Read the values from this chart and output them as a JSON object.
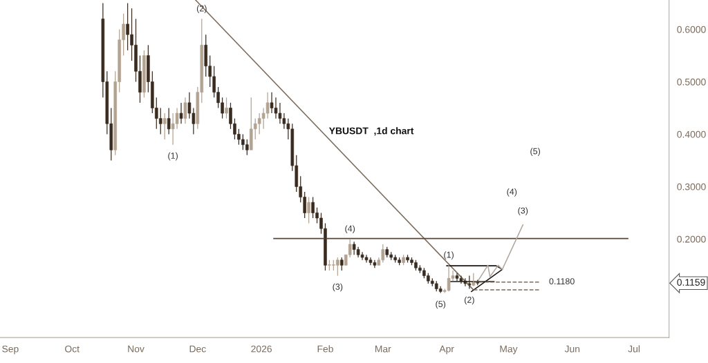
{
  "chart_data": {
    "type": "candlestick",
    "title": "YBUSDT  ,1d chart",
    "colors": [
      "#3a2c20",
      "#3a2c20",
      "#3a2c20",
      "#b3a392",
      "#b3a392",
      "#b3a392",
      "#3a2c20",
      "#3a2c20",
      "#3a2c20",
      "#3a2c20",
      "#b3a392",
      "#3a2c20",
      "#3a2c20",
      "#3a2c20",
      "#3a2c20",
      "#b3a392",
      "#3a2c20",
      "#b3a392",
      "#b3a392",
      "#3a2c20",
      "#b3a392",
      "#3a2c20",
      "#3a2c20",
      "#b3a392",
      "#b3a392",
      "#3a2c20",
      "#3a2c20",
      "#3a2c20",
      "#3a2c20",
      "#3a2c20",
      "#b3a392",
      "#3a2c20",
      "#3a2c20",
      "#3a2c20",
      "#3a2c20",
      "#3a2c20",
      "#b3a392",
      "#b3a392",
      "#b3a392",
      "#b3a392",
      "#b3a392",
      "#3a2c20",
      "#3a2c20",
      "#3a2c20",
      "#3a2c20",
      "#3a2c20",
      "#3a2c20",
      "#3a2c20",
      "#3a2c20",
      "#3a2c20",
      "#b3a392",
      "#3a2c20",
      "#3a2c20",
      "#3a2c20",
      "#3a2c20",
      "#b3a392",
      "#b3a392",
      "#b3a392",
      "#3a2c20",
      "#b3a392",
      "#b3a392",
      "#3a2c20",
      "#3a2c20",
      "#3a2c20",
      "#3a2c20",
      "#3a2c20",
      "#3a2c20",
      "#b3a392",
      "#b3a392",
      "#3a2c20",
      "#3a2c20",
      "#3a2c20",
      "#3a2c20",
      "#b3a392",
      "#3a2c20",
      "#3a2c20",
      "#3a2c20",
      "#3a2c20",
      "#3a2c20",
      "#3a2c20",
      "#3a2c20",
      "#3a2c20",
      "#3a2c20",
      "#b3a392",
      "#b3a392",
      "#b3a392",
      "#3a2c20",
      "#3a2c20",
      "#3a2c20",
      "#3a2c20",
      "#b3a392",
      "#3a2c20"
    ],
    "x": [
      "2025-10-16",
      "2025-10-18",
      "2025-10-20",
      "2025-10-22",
      "2025-10-24",
      "2025-10-26",
      "2025-10-28",
      "2025-10-30",
      "2025-11-01",
      "2025-11-03",
      "2025-11-05",
      "2025-11-07",
      "2025-11-09",
      "2025-11-11",
      "2025-11-13",
      "2025-11-15",
      "2025-11-17",
      "2025-11-19",
      "2025-11-21",
      "2025-11-23",
      "2025-11-25",
      "2025-11-27",
      "2025-11-29",
      "2025-12-01",
      "2025-12-03",
      "2025-12-05",
      "2025-12-07",
      "2025-12-09",
      "2025-12-11",
      "2025-12-13",
      "2025-12-15",
      "2025-12-17",
      "2025-12-19",
      "2025-12-21",
      "2025-12-23",
      "2025-12-25",
      "2025-12-27",
      "2025-12-29",
      "2025-12-31",
      "2026-01-02",
      "2026-01-04",
      "2026-01-06",
      "2026-01-08",
      "2026-01-10",
      "2026-01-12",
      "2026-01-14",
      "2026-01-16",
      "2026-01-18",
      "2026-01-20",
      "2026-01-22",
      "2026-01-24",
      "2026-01-26",
      "2026-01-28",
      "2026-01-30",
      "2026-02-01",
      "2026-02-03",
      "2026-02-05",
      "2026-02-07",
      "2026-02-09",
      "2026-02-11",
      "2026-02-13",
      "2026-02-15",
      "2026-02-17",
      "2026-02-19",
      "2026-02-21",
      "2026-02-23",
      "2026-02-25",
      "2026-02-27",
      "2026-03-01",
      "2026-03-03",
      "2026-03-05",
      "2026-03-07",
      "2026-03-09",
      "2026-03-11",
      "2026-03-13",
      "2026-03-15",
      "2026-03-17",
      "2026-03-19",
      "2026-03-21",
      "2026-03-23",
      "2026-03-25",
      "2026-03-27",
      "2026-03-29",
      "2026-03-31",
      "2026-04-02",
      "2026-04-04",
      "2026-04-06",
      "2026-04-08",
      "2026-04-10",
      "2026-04-12",
      "2026-04-14",
      "2026-04-16"
    ],
    "ohlc": [
      [
        0.62,
        0.65,
        0.47,
        0.5
      ],
      [
        0.5,
        0.52,
        0.4,
        0.42
      ],
      [
        0.42,
        0.45,
        0.35,
        0.37
      ],
      [
        0.37,
        0.52,
        0.36,
        0.5
      ],
      [
        0.5,
        0.6,
        0.48,
        0.58
      ],
      [
        0.58,
        0.63,
        0.55,
        0.61
      ],
      [
        0.61,
        0.65,
        0.56,
        0.59
      ],
      [
        0.59,
        0.64,
        0.54,
        0.57
      ],
      [
        0.57,
        0.62,
        0.5,
        0.52
      ],
      [
        0.52,
        0.55,
        0.46,
        0.48
      ],
      [
        0.48,
        0.56,
        0.47,
        0.55
      ],
      [
        0.55,
        0.57,
        0.48,
        0.5
      ],
      [
        0.5,
        0.52,
        0.44,
        0.45
      ],
      [
        0.45,
        0.47,
        0.41,
        0.43
      ],
      [
        0.43,
        0.45,
        0.4,
        0.42
      ],
      [
        0.42,
        0.44,
        0.39,
        0.43
      ],
      [
        0.43,
        0.45,
        0.4,
        0.41
      ],
      [
        0.41,
        0.44,
        0.38,
        0.42
      ],
      [
        0.42,
        0.45,
        0.41,
        0.44
      ],
      [
        0.44,
        0.46,
        0.42,
        0.43
      ],
      [
        0.43,
        0.47,
        0.42,
        0.46
      ],
      [
        0.46,
        0.48,
        0.43,
        0.44
      ],
      [
        0.44,
        0.45,
        0.4,
        0.42
      ],
      [
        0.42,
        0.49,
        0.41,
        0.48
      ],
      [
        0.48,
        0.62,
        0.46,
        0.57
      ],
      [
        0.57,
        0.59,
        0.51,
        0.53
      ],
      [
        0.53,
        0.55,
        0.49,
        0.51
      ],
      [
        0.51,
        0.53,
        0.47,
        0.48
      ],
      [
        0.48,
        0.49,
        0.45,
        0.46
      ],
      [
        0.46,
        0.47,
        0.43,
        0.44
      ],
      [
        0.44,
        0.47,
        0.43,
        0.45
      ],
      [
        0.45,
        0.46,
        0.41,
        0.42
      ],
      [
        0.42,
        0.43,
        0.39,
        0.4
      ],
      [
        0.4,
        0.41,
        0.38,
        0.39
      ],
      [
        0.39,
        0.4,
        0.37,
        0.38
      ],
      [
        0.38,
        0.39,
        0.36,
        0.37
      ],
      [
        0.37,
        0.47,
        0.37,
        0.41
      ],
      [
        0.41,
        0.43,
        0.39,
        0.42
      ],
      [
        0.42,
        0.44,
        0.4,
        0.43
      ],
      [
        0.43,
        0.45,
        0.41,
        0.44
      ],
      [
        0.44,
        0.48,
        0.43,
        0.46
      ],
      [
        0.46,
        0.48,
        0.44,
        0.45
      ],
      [
        0.45,
        0.47,
        0.43,
        0.44
      ],
      [
        0.44,
        0.46,
        0.42,
        0.43
      ],
      [
        0.43,
        0.44,
        0.41,
        0.42
      ],
      [
        0.42,
        0.43,
        0.39,
        0.41
      ],
      [
        0.41,
        0.42,
        0.33,
        0.34
      ],
      [
        0.34,
        0.36,
        0.29,
        0.3
      ],
      [
        0.3,
        0.32,
        0.27,
        0.28
      ],
      [
        0.28,
        0.29,
        0.24,
        0.25
      ],
      [
        0.25,
        0.28,
        0.23,
        0.27
      ],
      [
        0.27,
        0.28,
        0.24,
        0.25
      ],
      [
        0.25,
        0.26,
        0.23,
        0.24
      ],
      [
        0.24,
        0.25,
        0.21,
        0.22
      ],
      [
        0.22,
        0.23,
        0.14,
        0.15
      ],
      [
        0.15,
        0.16,
        0.14,
        0.15
      ],
      [
        0.15,
        0.16,
        0.14,
        0.15
      ],
      [
        0.15,
        0.165,
        0.13,
        0.16
      ],
      [
        0.16,
        0.165,
        0.14,
        0.15
      ],
      [
        0.15,
        0.17,
        0.15,
        0.17
      ],
      [
        0.17,
        0.2,
        0.165,
        0.19
      ],
      [
        0.19,
        0.195,
        0.17,
        0.18
      ],
      [
        0.18,
        0.185,
        0.165,
        0.17
      ],
      [
        0.17,
        0.175,
        0.16,
        0.165
      ],
      [
        0.165,
        0.17,
        0.155,
        0.16
      ],
      [
        0.16,
        0.165,
        0.15,
        0.155
      ],
      [
        0.155,
        0.16,
        0.145,
        0.15
      ],
      [
        0.15,
        0.165,
        0.15,
        0.16
      ],
      [
        0.16,
        0.19,
        0.155,
        0.18
      ],
      [
        0.18,
        0.185,
        0.165,
        0.17
      ],
      [
        0.17,
        0.175,
        0.16,
        0.165
      ],
      [
        0.165,
        0.17,
        0.155,
        0.16
      ],
      [
        0.16,
        0.165,
        0.15,
        0.155
      ],
      [
        0.155,
        0.17,
        0.15,
        0.165
      ],
      [
        0.165,
        0.17,
        0.155,
        0.16
      ],
      [
        0.16,
        0.165,
        0.15,
        0.155
      ],
      [
        0.155,
        0.16,
        0.14,
        0.145
      ],
      [
        0.145,
        0.15,
        0.135,
        0.14
      ],
      [
        0.14,
        0.145,
        0.125,
        0.13
      ],
      [
        0.13,
        0.135,
        0.115,
        0.12
      ],
      [
        0.12,
        0.125,
        0.11,
        0.115
      ],
      [
        0.115,
        0.12,
        0.1,
        0.105
      ],
      [
        0.105,
        0.11,
        0.097,
        0.1
      ],
      [
        0.1,
        0.105,
        0.097,
        0.102
      ],
      [
        0.102,
        0.15,
        0.1,
        0.125
      ],
      [
        0.125,
        0.14,
        0.12,
        0.13
      ],
      [
        0.13,
        0.135,
        0.12,
        0.125
      ],
      [
        0.125,
        0.13,
        0.115,
        0.12
      ],
      [
        0.12,
        0.125,
        0.11,
        0.115
      ],
      [
        0.115,
        0.13,
        0.105,
        0.112
      ],
      [
        0.112,
        0.135,
        0.11,
        0.118
      ],
      [
        0.118,
        0.122,
        0.112,
        0.1159
      ]
    ],
    "series": [
      {
        "type": "line",
        "color": "#7a6a5c",
        "line_style": "solid",
        "x": [
          "2025-11-30",
          "2026-04-14"
        ],
        "values": [
          0.656,
          0.103
        ]
      },
      {
        "type": "line",
        "color": "#5a4332",
        "line_style": "solid",
        "x": [
          "2026-01-07",
          "2026-06-28"
        ],
        "values": [
          0.201,
          0.201
        ]
      },
      {
        "type": "line",
        "color": "#1a1410",
        "line_style": "solid",
        "x": [
          "2026-04-01",
          "2026-04-25",
          "2026-04-28",
          "2026-04-13"
        ],
        "values": [
          0.149,
          0.149,
          0.142,
          0.1
        ]
      },
      {
        "type": "line",
        "color": "#1a1410",
        "line_style": "solid",
        "x": [
          "2026-04-03",
          "2026-04-24"
        ],
        "values": [
          0.119,
          0.119
        ]
      },
      {
        "type": "line",
        "color": "#b0a89f",
        "line_style": "solid",
        "x": [
          "2026-04-16",
          "2026-04-21",
          "2026-04-22",
          "2026-04-26",
          "2026-04-28",
          "2026-05-08"
        ],
        "values": [
          0.119,
          0.15,
          0.128,
          0.15,
          0.142,
          0.227
        ]
      },
      {
        "type": "line",
        "color": "#7a6a5c",
        "line_style": "dashed",
        "x": [
          "2026-04-14",
          "2026-05-16"
        ],
        "values": [
          0.118,
          0.118
        ]
      },
      {
        "type": "line",
        "color": "#7a6a5c",
        "line_style": "dashed",
        "x": [
          "2026-04-14",
          "2026-05-16"
        ],
        "values": [
          0.103,
          0.103
        ]
      }
    ],
    "annotations": [
      {
        "text": "(2)",
        "x": "2025-12-03",
        "y": 0.62
      },
      {
        "text": "(1)",
        "x": "2025-11-19",
        "y": 0.38
      },
      {
        "text": "(4)",
        "x": "2026-02-13",
        "y": 0.2
      },
      {
        "text": "(3)",
        "x": "2026-02-07",
        "y": 0.13
      },
      {
        "text": "(5)",
        "x": "2026-03-29",
        "y": 0.097
      },
      {
        "text": "(1)",
        "x": "2026-04-02",
        "y": 0.15
      },
      {
        "text": "(2)",
        "x": "2026-04-12",
        "y": 0.105
      },
      {
        "text": "(3)",
        "x": "2026-05-08",
        "y": 0.227
      },
      "(4)",
      "(5)",
      {
        "text": "0.1180",
        "x": "2026-05-16",
        "y": 0.118
      },
      "0.1159"
    ],
    "xlim": [
      "2025-08-27",
      "2026-07-18"
    ],
    "xticks": [
      {
        "value": "2025-09-01",
        "label": "Sep"
      },
      {
        "value": "2025-10-01",
        "label": "Oct"
      },
      {
        "value": "2025-11-01",
        "label": "Nov"
      },
      {
        "value": "2025-12-01",
        "label": "Dec"
      },
      {
        "value": "2026-01-01",
        "label": "2026"
      },
      {
        "value": "2026-02-01",
        "label": "Feb"
      },
      {
        "value": "2026-03-01",
        "label": "Mar"
      },
      {
        "value": "2026-04-01",
        "label": "Apr"
      },
      {
        "value": "2026-05-01",
        "label": "May"
      },
      {
        "value": "2026-06-01",
        "label": "Jun"
      },
      {
        "value": "2026-07-01",
        "label": "Jul"
      }
    ],
    "ylim": [
      0.012,
      0.656
    ],
    "yticks": [
      {
        "value": 0.2,
        "label": "0.2000"
      },
      {
        "value": 0.3,
        "label": "0.3000"
      },
      {
        "value": 0.4,
        "label": "0.4000"
      },
      {
        "value": 0.5,
        "label": "0.5000"
      },
      {
        "value": 0.6,
        "label": "0.6000"
      }
    ]
  }
}
